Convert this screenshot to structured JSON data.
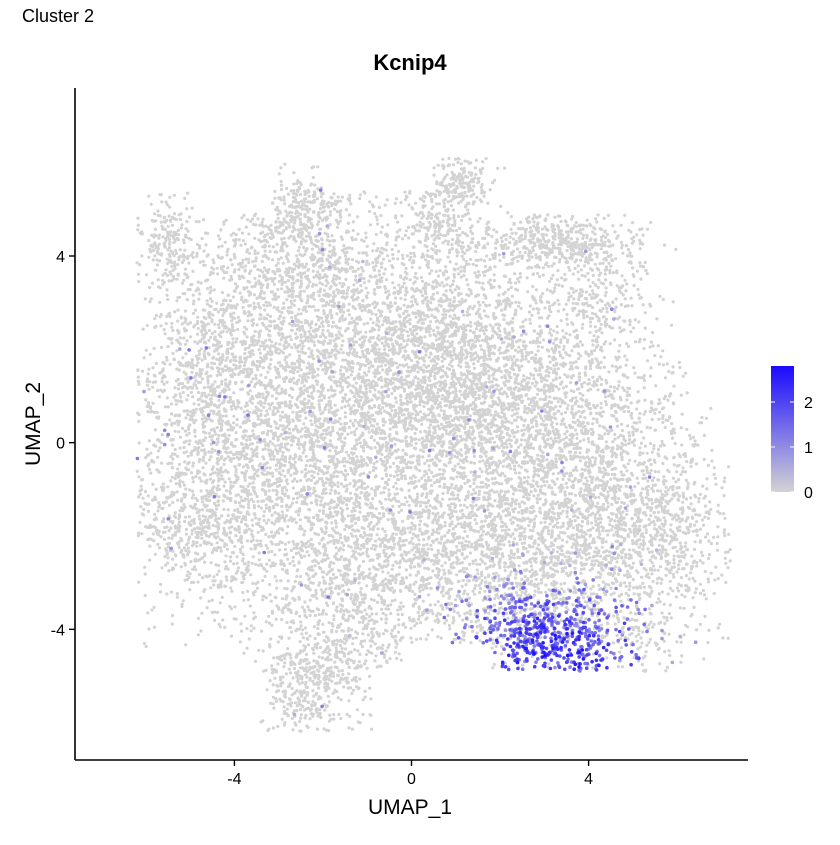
{
  "page": {
    "tag": "Cluster 2"
  },
  "chart_data": {
    "type": "scatter",
    "title": "Kcnip4",
    "xlabel": "UMAP_1",
    "ylabel": "UMAP_2",
    "xlim": [
      -7.6,
      7.6
    ],
    "ylim": [
      -6.8,
      7.6
    ],
    "x_ticks": [
      {
        "value": -4,
        "label": "-4"
      },
      {
        "value": 0,
        "label": "0"
      },
      {
        "value": 4,
        "label": "4"
      }
    ],
    "y_ticks": [
      {
        "value": -4,
        "label": "-4"
      },
      {
        "value": 0,
        "label": "0"
      },
      {
        "value": 4,
        "label": "4"
      }
    ],
    "grid": false,
    "legend": {
      "placement": "right",
      "range": [
        0,
        2.8
      ],
      "ticks": [
        {
          "value": 0,
          "label": "0"
        },
        {
          "value": 1,
          "label": "1"
        },
        {
          "value": 2,
          "label": "2"
        }
      ],
      "low_color": "#d3d3d3",
      "high_color": "#1a0aff"
    },
    "expression_hotspot": {
      "x": 3.2,
      "y": -4.5,
      "peak_value": 2.8
    },
    "point_color": "#d3d3d3"
  }
}
